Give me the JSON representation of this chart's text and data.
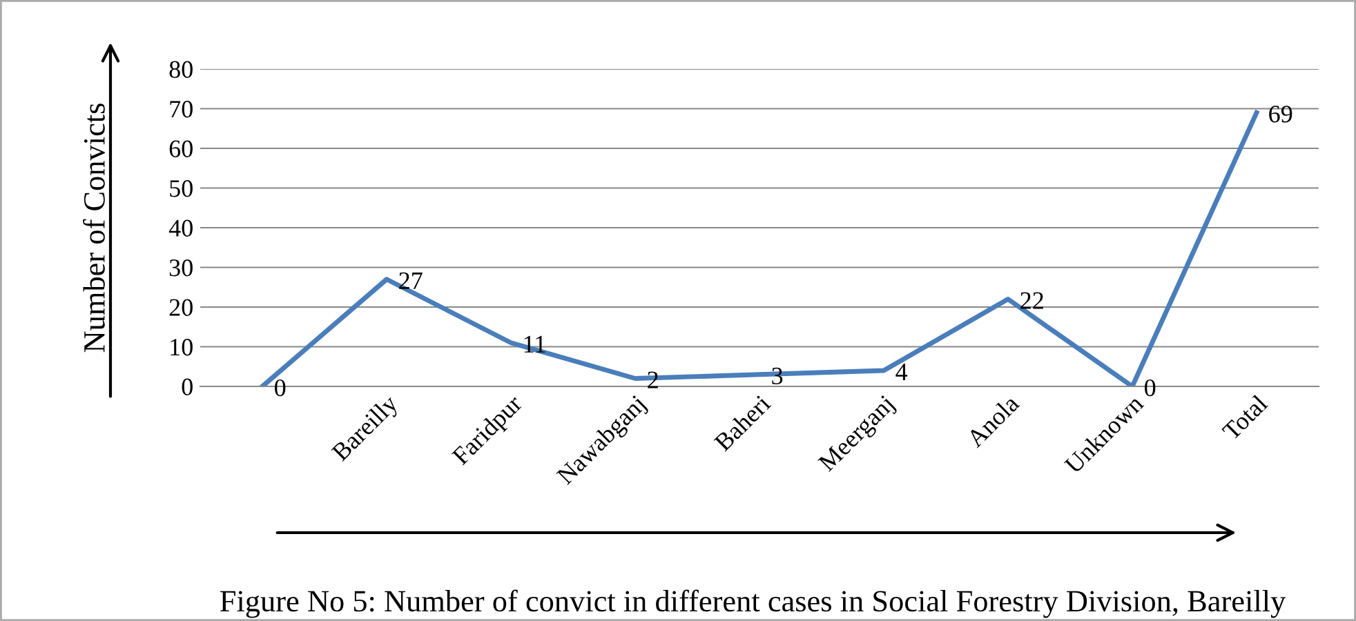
{
  "chart_data": {
    "type": "line",
    "title": "Figure No 5: Number of convict in different cases in Social Forestry Division, Bareilly",
    "ylabel": "Number of Convicts",
    "categories": [
      null,
      "Bareilly",
      "Faridpur",
      "Nawabganj",
      "Baheri",
      "Meerganj",
      "Anola",
      "Unknown",
      "Total"
    ],
    "series": [
      {
        "color": "#4a7ebb",
        "values": [
          0,
          27,
          11,
          2,
          3,
          4,
          22,
          0,
          69
        ]
      }
    ],
    "ylim": [
      0,
      80
    ],
    "yticks": [
      0,
      10,
      20,
      30,
      40,
      50,
      60,
      70,
      80
    ],
    "grid": "y",
    "data_labels": true
  }
}
